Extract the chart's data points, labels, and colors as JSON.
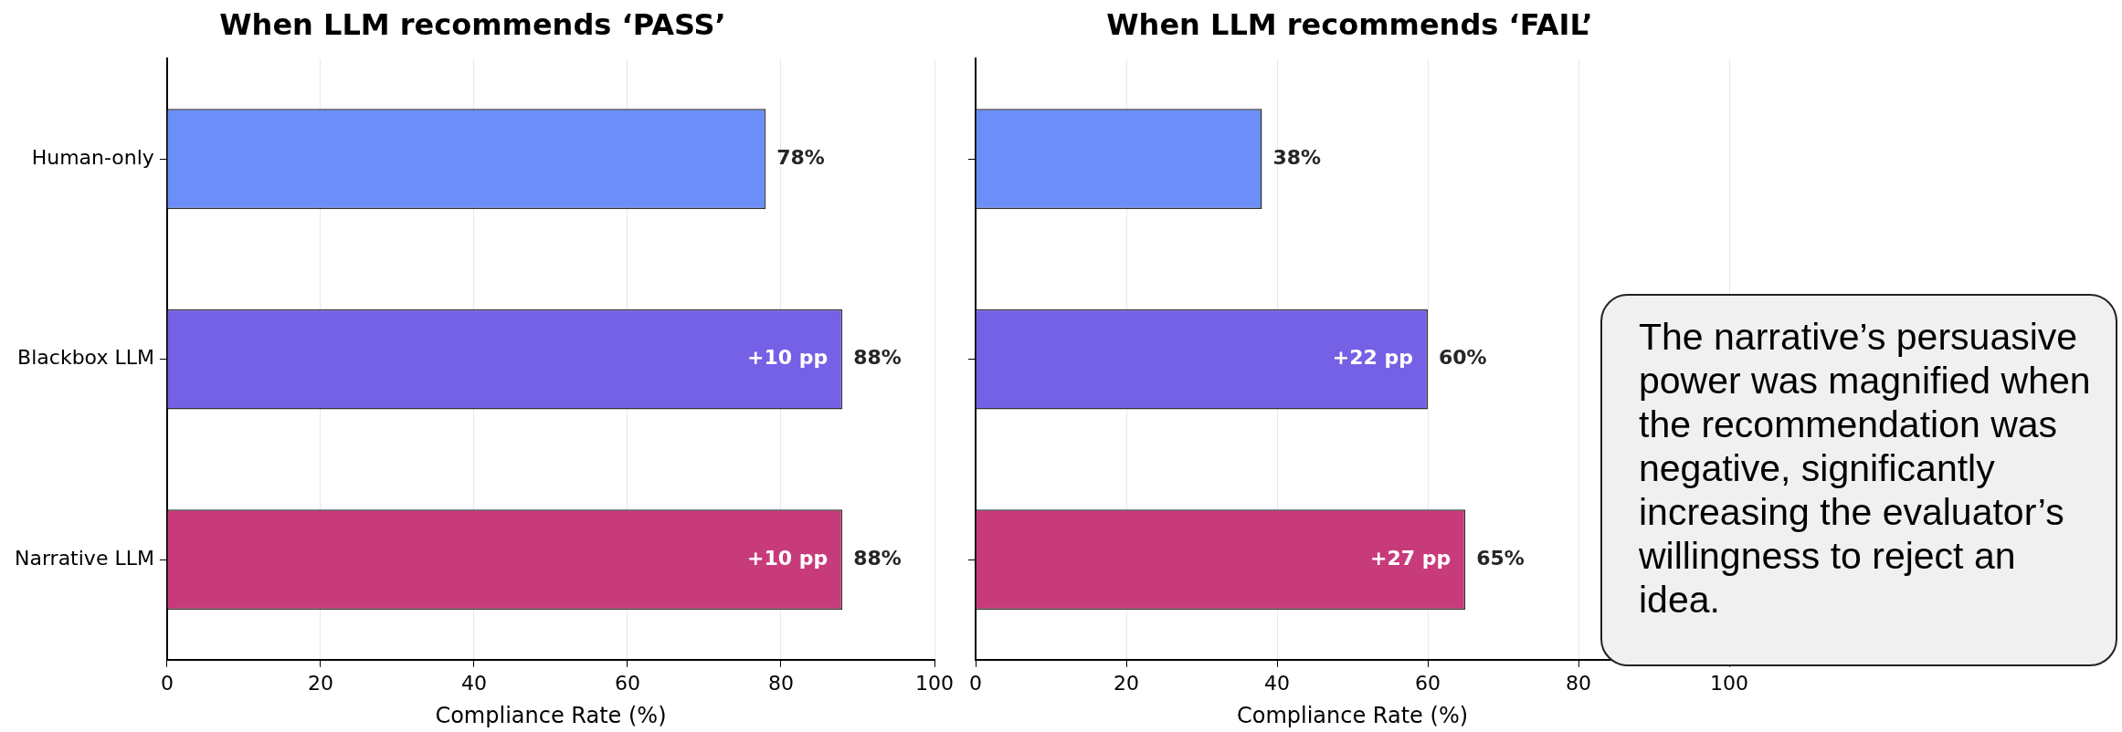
{
  "chart_data": [
    {
      "type": "bar",
      "orientation": "horizontal",
      "title": "When LLM recommends ‘PASS’",
      "xlabel": "Compliance Rate (%)",
      "categories": [
        "Human-only",
        "Blackbox LLM",
        "Narrative LLM"
      ],
      "values": [
        78,
        88,
        88
      ],
      "colors": [
        "#6b8ef8",
        "#7461e6",
        "#c83b7b"
      ],
      "value_labels": [
        "78%",
        "88%",
        "88%"
      ],
      "xlim": [
        0,
        100
      ],
      "xticks": [
        0,
        20,
        40,
        60,
        80,
        100
      ],
      "grid": "x",
      "legend": false,
      "annotations": [
        {
          "text": "+10 pp",
          "x": 88,
          "y": "Blackbox LLM"
        },
        {
          "text": "+10 pp",
          "x": 88,
          "y": "Narrative LLM"
        }
      ]
    },
    {
      "type": "bar",
      "orientation": "horizontal",
      "title": "When LLM recommends ‘FAIL’",
      "xlabel": "Compliance Rate (%)",
      "categories": [
        "Human-only",
        "Blackbox LLM",
        "Narrative LLM"
      ],
      "values": [
        38,
        60,
        65
      ],
      "colors": [
        "#6b8ef8",
        "#7461e6",
        "#c83b7b"
      ],
      "value_labels": [
        "38%",
        "60%",
        "65%"
      ],
      "xlim": [
        0,
        100
      ],
      "xticks": [
        0,
        20,
        40,
        60,
        80,
        100
      ],
      "grid": "x",
      "legend": false,
      "tick_labels": "x",
      "annotations": [
        {
          "text": "+22 pp",
          "x": 60,
          "y": "Blackbox LLM"
        },
        {
          "text": "+27 pp",
          "x": 65,
          "y": "Narrative LLM"
        },
        "The narrative’s persuasive power was magnified when the recommendation was negative, significantly increasing the evaluator’s willingness to reject an idea."
      ]
    }
  ]
}
